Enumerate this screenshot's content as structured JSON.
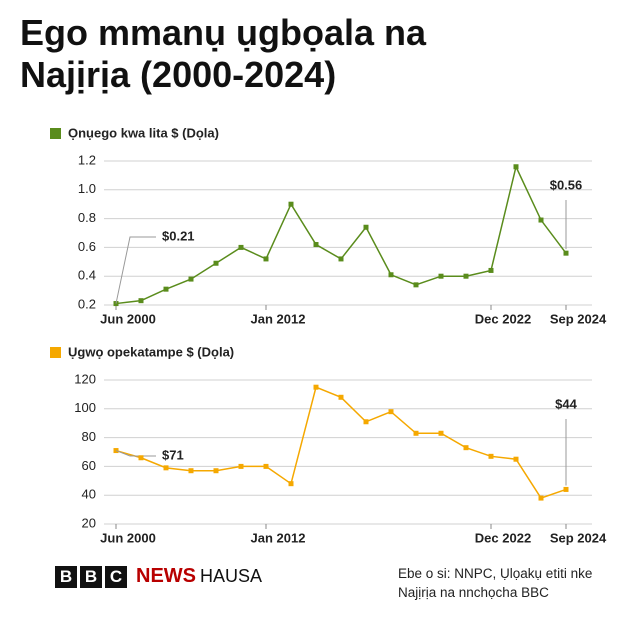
{
  "title": "Ego mmanụ ụgbọala na Najịrịa (2000-2024)",
  "source": "Ebe o si: NNPC, Ụlọakụ etiti nke Najịrịa na nnchọcha BBC",
  "branding": {
    "logo": [
      "B",
      "B",
      "C"
    ],
    "news": "NEWS",
    "service": "HAUSA"
  },
  "chart_data": [
    {
      "type": "line",
      "categories": [
        "Jun 2000",
        null,
        null,
        null,
        null,
        null,
        "Jan 2012",
        null,
        null,
        null,
        null,
        null,
        null,
        null,
        null,
        "Dec 2022",
        null,
        null,
        "Sep 2024"
      ],
      "series": [
        {
          "name": "Ọnụego kwa lita $ (Dọla)",
          "color": "#5a8c1c",
          "values": [
            0.21,
            0.23,
            0.31,
            0.38,
            0.49,
            0.6,
            0.52,
            0.9,
            0.62,
            0.52,
            0.74,
            0.41,
            0.34,
            0.4,
            0.4,
            0.44,
            1.16,
            0.79,
            0.56
          ],
          "value_labels": [
            "$0.21",
            null,
            null,
            null,
            null,
            null,
            null,
            null,
            null,
            null,
            null,
            null,
            null,
            null,
            null,
            null,
            null,
            null,
            "$0.56"
          ],
          "value_label_color": "#5a8c1c"
        }
      ],
      "ylim": [
        0.2,
        1.2
      ],
      "yticks": [
        0.2,
        0.4,
        0.6,
        0.8,
        {
          "value": 1,
          "label": "1.0"
        },
        1.2
      ],
      "grid": true
    },
    {
      "type": "line",
      "categories": [
        "Jun 2000",
        null,
        null,
        null,
        null,
        null,
        "Jan 2012",
        null,
        null,
        null,
        null,
        null,
        null,
        null,
        null,
        "Dec 2022",
        null,
        null,
        "Sep 2024"
      ],
      "series": [
        {
          "name": "Ụgwọ opekatampe $ (Dọla)",
          "color": "#f5a800",
          "values": [
            71,
            66,
            59,
            57,
            57,
            60,
            60,
            48,
            115,
            108,
            91,
            98,
            83,
            83,
            73,
            67,
            65,
            38,
            44
          ],
          "value_labels": [
            "$71",
            null,
            null,
            null,
            null,
            null,
            null,
            null,
            null,
            null,
            null,
            null,
            null,
            null,
            null,
            null,
            null,
            null,
            "$44"
          ],
          "value_label_color": "#222222"
        }
      ],
      "ylim": [
        20,
        120
      ],
      "yticks": [
        20,
        40,
        60,
        80,
        100,
        120
      ],
      "grid": true
    }
  ]
}
